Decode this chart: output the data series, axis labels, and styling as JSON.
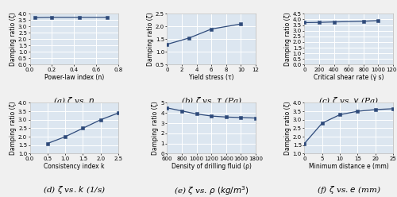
{
  "subplots": [
    {
      "label": "(a) $\\zeta$ vs. $n$",
      "xlabel": "Power-law index (n)",
      "ylabel": "Damping ratio (ζ)",
      "x": [
        0.05,
        0.2,
        0.45,
        0.7
      ],
      "y": [
        3.7,
        3.72,
        3.72,
        3.72
      ],
      "xlim": [
        0,
        0.8
      ],
      "ylim": [
        0.0,
        4.0
      ],
      "xticks": [
        0.0,
        0.2,
        0.4,
        0.6,
        0.8
      ],
      "yticks": [
        0.0,
        0.5,
        1.0,
        1.5,
        2.0,
        2.5,
        3.0,
        3.5,
        4.0
      ]
    },
    {
      "label": "(b) $\\zeta$ vs. $\\tau$ (Pa)",
      "xlabel": "Yield stress (τ)",
      "ylabel": "Damping ratio (ζ)",
      "x": [
        0,
        3,
        6,
        10
      ],
      "y": [
        1.3,
        1.55,
        1.9,
        2.1
      ],
      "xlim": [
        0,
        12
      ],
      "ylim": [
        0.5,
        2.5
      ],
      "xticks": [
        0,
        2,
        4,
        6,
        8,
        10,
        12
      ],
      "yticks": [
        0.5,
        1.0,
        1.5,
        2.0,
        2.5
      ]
    },
    {
      "label": "(c) $\\zeta$ vs. $\\gamma$ (Pa)",
      "xlabel": "Critical shear rate (γ̇ s)",
      "ylabel": "Damping ratio (ζ)",
      "x": [
        0,
        200,
        400,
        800,
        1000
      ],
      "y": [
        3.72,
        3.74,
        3.78,
        3.84,
        3.9
      ],
      "xlim": [
        0,
        1200
      ],
      "ylim": [
        0.0,
        4.5
      ],
      "xticks": [
        0,
        200,
        400,
        600,
        800,
        1000,
        1200
      ],
      "yticks": [
        0.0,
        0.5,
        1.0,
        1.5,
        2.0,
        2.5,
        3.0,
        3.5,
        4.0,
        4.5
      ]
    },
    {
      "label": "(d) $\\zeta$ vs. $k$ (1/s)",
      "xlabel": "Consistency index k",
      "ylabel": "Damping ratio (ζ)",
      "x": [
        0.5,
        1.0,
        1.5,
        2.0,
        2.5
      ],
      "y": [
        1.6,
        2.0,
        2.5,
        3.0,
        3.4
      ],
      "xlim": [
        0,
        2.5
      ],
      "ylim": [
        1.0,
        4.0
      ],
      "xticks": [
        0.0,
        0.5,
        1.0,
        1.5,
        2.0,
        2.5
      ],
      "yticks": [
        1.0,
        1.5,
        2.0,
        2.5,
        3.0,
        3.5,
        4.0
      ]
    },
    {
      "label": "(e) $\\zeta$ vs. $\\rho$ $(kg/m^3)$",
      "xlabel": "Density of drilling fluid (ρ)",
      "ylabel": "Damping ratio (ζ)",
      "x": [
        600,
        800,
        1000,
        1200,
        1400,
        1600,
        1800
      ],
      "y": [
        4.5,
        4.2,
        3.9,
        3.7,
        3.6,
        3.55,
        3.5
      ],
      "xlim": [
        600,
        1800
      ],
      "ylim": [
        0.0,
        5.0
      ],
      "xticks": [
        600,
        800,
        1000,
        1200,
        1400,
        1600,
        1800
      ],
      "yticks": [
        0.0,
        1.0,
        2.0,
        3.0,
        4.0,
        5.0
      ]
    },
    {
      "label": "(f) $\\zeta$ vs. $e$ (mm)",
      "xlabel": "Minimum distance e (mm)",
      "ylabel": "Damping ratio (ζ)",
      "x": [
        0,
        5,
        10,
        15,
        20,
        25
      ],
      "y": [
        1.6,
        2.8,
        3.3,
        3.5,
        3.6,
        3.65
      ],
      "xlim": [
        0,
        25
      ],
      "ylim": [
        1.0,
        4.0
      ],
      "xticks": [
        0,
        5,
        10,
        15,
        20,
        25
      ],
      "yticks": [
        1.0,
        1.5,
        2.0,
        2.5,
        3.0,
        3.5,
        4.0
      ]
    }
  ],
  "line_color": "#2e4a7a",
  "marker_color": "#2e4a7a",
  "bg_color": "#dce6f0",
  "grid_color": "#ffffff",
  "fig_bg": "#f0f0f0",
  "label_fontsize": 5.5,
  "tick_fontsize": 5.0,
  "caption_fontsize": 7.5
}
